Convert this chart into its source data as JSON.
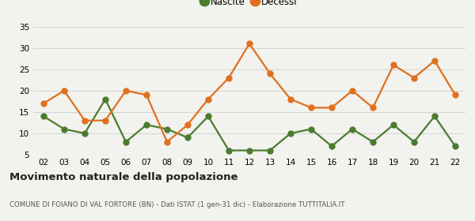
{
  "years": [
    "02",
    "03",
    "04",
    "05",
    "06",
    "07",
    "08",
    "09",
    "10",
    "11",
    "12",
    "13",
    "14",
    "15",
    "16",
    "17",
    "18",
    "19",
    "20",
    "21",
    "22"
  ],
  "nascite": [
    14,
    11,
    10,
    18,
    8,
    12,
    11,
    9,
    14,
    6,
    6,
    6,
    10,
    11,
    7,
    11,
    8,
    12,
    8,
    14,
    7
  ],
  "decessi": [
    17,
    20,
    13,
    13,
    20,
    19,
    8,
    12,
    18,
    23,
    31,
    24,
    18,
    16,
    16,
    20,
    16,
    26,
    23,
    27,
    19
  ],
  "nascite_color": "#4a7c2f",
  "decessi_color": "#e07020",
  "background_color": "#f2f2ee",
  "ylim": [
    5,
    35
  ],
  "yticks": [
    5,
    10,
    15,
    20,
    25,
    30,
    35
  ],
  "title": "Movimento naturale della popolazione",
  "subtitle": "COMUNE DI FOIANO DI VAL FORTORE (BN) - Dati ISTAT (1 gen-31 dic) - Elaborazione TUTTITALIA.IT",
  "legend_nascite": "Nascite",
  "legend_decessi": "Decessi",
  "marker_size": 5,
  "line_width": 1.6
}
